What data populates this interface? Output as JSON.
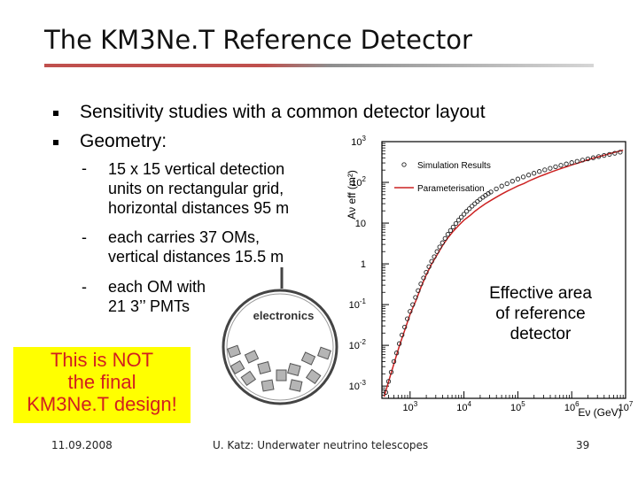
{
  "slide": {
    "title": "The KM3Ne.T Reference Detector",
    "bullets": [
      "Sensitivity studies with a common detector layout",
      "Geometry:"
    ],
    "sub_items": [
      {
        "dash": "-",
        "lines": [
          "15 x 15 vertical detection",
          "units on rectangular grid,",
          "horizontal distances 95 m"
        ]
      },
      {
        "dash": "-",
        "lines": [
          "each carries 37 OMs,",
          "vertical distances 15.5 m"
        ]
      },
      {
        "dash": "-",
        "lines": [
          "each OM with",
          "21 3’’ PMTs"
        ]
      }
    ],
    "om_figure": {
      "label": "electronics"
    },
    "note_lines": [
      "This is NOT",
      "the final",
      "KM3Ne.T design!"
    ],
    "effective_area_label_lines": [
      "Effective area",
      "of reference",
      "detector"
    ],
    "footer": {
      "date": "11.09.2008",
      "center": "U. Katz: Underwater neutrino telescopes",
      "page": "39"
    }
  },
  "chart_data": {
    "type": "scatter",
    "xlabel": "Eν (GeV)",
    "ylabel": "Aν eff (m²)",
    "x_scale": "log",
    "y_scale": "log",
    "xlim": [
      300,
      10000000
    ],
    "ylim": [
      0.0005,
      1000
    ],
    "x_ticks": [
      {
        "label": "10",
        "sup": "3",
        "value": 1000
      },
      {
        "label": "10",
        "sup": "4",
        "value": 10000
      },
      {
        "label": "10",
        "sup": "5",
        "value": 100000
      },
      {
        "label": "10",
        "sup": "6",
        "value": 1000000
      },
      {
        "label": "10",
        "sup": "7",
        "value": 10000000
      }
    ],
    "y_ticks": [
      {
        "label": "10",
        "sup": "3",
        "value": 1000
      },
      {
        "label": "10",
        "sup": "2",
        "value": 100
      },
      {
        "label": "10",
        "sup": "",
        "value": 10
      },
      {
        "label": "1",
        "sup": "",
        "value": 1
      },
      {
        "label": "10",
        "sup": "-1",
        "value": 0.1
      },
      {
        "label": "10",
        "sup": "-2",
        "value": 0.01
      },
      {
        "label": "10",
        "sup": "-3",
        "value": 0.001
      }
    ],
    "legend": [
      "Simulation Results",
      "Parameterisation"
    ],
    "legend_position": "top-right",
    "series": [
      {
        "name": "Simulation Results",
        "marker": "open-circle",
        "x": [
          355,
          398,
          447,
          501,
          562,
          631,
          708,
          794,
          891,
          1000,
          1122,
          1259,
          1413,
          1585,
          1778,
          1995,
          2239,
          2512,
          2818,
          3162,
          3548,
          3981,
          4467,
          5012,
          5623,
          6310,
          7079,
          7943,
          8913,
          10000,
          11220,
          12589,
          14125,
          15849,
          17783,
          19953,
          22387,
          25119,
          28184,
          31623,
          39811,
          50119,
          63096,
          79433,
          100000,
          125893,
          158489,
          199526,
          251189,
          316228,
          398107,
          501187,
          630957,
          794328,
          1000000,
          1258925,
          1584893,
          1995262,
          2511886,
          3162278,
          3981072,
          5011872,
          6309573,
          7943282
        ],
        "y": [
          0.0007,
          0.0013,
          0.0022,
          0.004,
          0.0065,
          0.011,
          0.018,
          0.028,
          0.045,
          0.068,
          0.1,
          0.15,
          0.22,
          0.32,
          0.45,
          0.62,
          0.85,
          1.15,
          1.5,
          2.0,
          2.6,
          3.3,
          4.2,
          5.3,
          6.6,
          8.0,
          9.8,
          11.8,
          14.0,
          16.5,
          19.5,
          22.5,
          26.0,
          30.0,
          34.0,
          38.5,
          43.0,
          48.0,
          53.0,
          58.0,
          69.0,
          81.0,
          93.0,
          107.0,
          121.0,
          136.0,
          152.0,
          168.0,
          185.0,
          203.0,
          222.0,
          241.0,
          262.0,
          283.0,
          305.0,
          328.0,
          352.0,
          377.0,
          403.0,
          430.0,
          458.0,
          487.0,
          518.0,
          550.0
        ]
      },
      {
        "name": "Parameterisation",
        "marker": "line",
        "color": "#cc2222",
        "x": [
          330,
          400,
          500,
          630,
          800,
          1000,
          1300,
          1600,
          2000,
          2500,
          3200,
          4000,
          5000,
          6300,
          8000,
          10000,
          13000,
          16000,
          20000,
          25000,
          32000,
          40000,
          50000,
          63000,
          80000,
          100000,
          130000,
          160000,
          200000,
          250000,
          320000,
          400000,
          500000,
          630000,
          800000,
          1000000,
          1300000,
          1600000,
          2000000,
          2500000,
          3200000,
          4000000,
          5000000,
          6300000,
          8000000,
          9000000
        ],
        "y": [
          0.00055,
          0.0013,
          0.0035,
          0.0095,
          0.024,
          0.058,
          0.13,
          0.27,
          0.54,
          0.98,
          1.7,
          2.8,
          4.3,
          6.3,
          8.8,
          11.8,
          15.4,
          19.6,
          24.4,
          30.0,
          36.5,
          43.5,
          51.5,
          60.5,
          70.5,
          81.5,
          94.0,
          108.0,
          123.0,
          139.0,
          157.0,
          176.0,
          196.0,
          218.0,
          242.0,
          268.0,
          296.0,
          326.0,
          358.0,
          392.0,
          428.0,
          466.0,
          506.0,
          548.0,
          592.0,
          615.0
        ]
      }
    ]
  }
}
